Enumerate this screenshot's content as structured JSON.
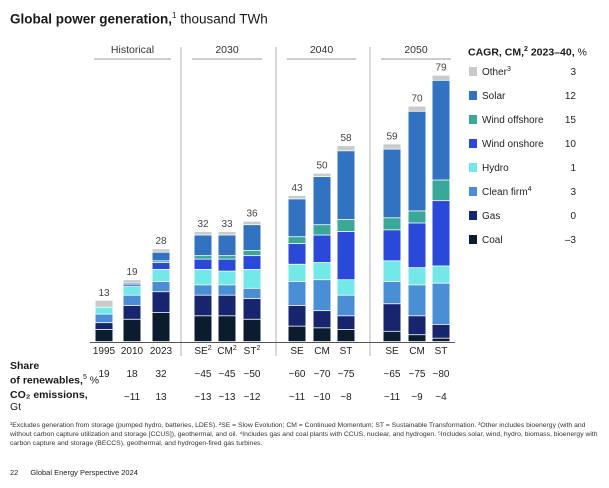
{
  "title": {
    "main": "Global power generation,",
    "sup": "1",
    "unit": " thousand TWh"
  },
  "chart_data": {
    "type": "bar",
    "stacked": true,
    "title": "Global power generation, thousand TWh",
    "groups": [
      {
        "label": "Historical",
        "categories": [
          "1995",
          "2010",
          "2023"
        ]
      },
      {
        "label": "2030",
        "categories": [
          "SE²",
          "CM²",
          "ST²"
        ]
      },
      {
        "label": "2040",
        "categories": [
          "SE",
          "CM",
          "ST"
        ]
      },
      {
        "label": "2050",
        "categories": [
          "SE",
          "CM",
          "ST"
        ]
      }
    ],
    "categories": [
      "1995",
      "2010",
      "2023",
      "SE²",
      "CM²",
      "ST²",
      "SE",
      "CM",
      "ST",
      "SE",
      "CM",
      "ST"
    ],
    "totals": [
      "13",
      "19",
      "28",
      "32",
      "33",
      "36",
      "43",
      "50",
      "58",
      "59",
      "70",
      "79"
    ],
    "series": [
      {
        "name": "Coal",
        "color": "#0b1c2e",
        "values": [
          3.5,
          6.5,
          8.5,
          7.5,
          7.5,
          6.5,
          4.5,
          4,
          3.5,
          3,
          2,
          1
        ]
      },
      {
        "name": "Gas",
        "color": "#17246e",
        "values": [
          2,
          4,
          6,
          6,
          6,
          6,
          6,
          5,
          4,
          8,
          5.5,
          4
        ]
      },
      {
        "name": "Clean firm",
        "color": "#4a8fd6",
        "values": [
          2.5,
          3,
          3,
          3,
          3,
          3,
          7,
          9,
          6,
          6.5,
          9,
          12
        ]
      },
      {
        "name": "Hydro",
        "color": "#72e8e8",
        "values": [
          2,
          2.5,
          3.5,
          4.5,
          4,
          5.5,
          5,
          5,
          4.5,
          6,
          5,
          5
        ]
      },
      {
        "name": "Wind onshore",
        "color": "#2b49d9",
        "values": [
          0,
          0.5,
          2,
          3,
          3.5,
          4,
          6,
          8,
          14,
          9,
          13,
          19
        ]
      },
      {
        "name": "Wind offshore",
        "color": "#3aa898",
        "values": [
          0,
          0,
          0.5,
          1,
          1,
          1.5,
          2,
          3,
          3.5,
          3.5,
          3.5,
          6
        ]
      },
      {
        "name": "Solar",
        "color": "#3173c0",
        "values": [
          0,
          0.5,
          2.5,
          6,
          6,
          7.5,
          11,
          14,
          20,
          20,
          29,
          29
        ]
      },
      {
        "name": "Other",
        "color": "#cacaca",
        "values": [
          2,
          1,
          1,
          1,
          1,
          1,
          1,
          1,
          1.5,
          1.5,
          1.5,
          1.5
        ]
      }
    ],
    "ylim": [
      0,
      82
    ],
    "grid": false,
    "share_of_renewables": [
      "19",
      "18",
      "32",
      "~45",
      "~45",
      "~50",
      "~60",
      "~70",
      "~75",
      "~65",
      "~75",
      "~80"
    ],
    "co2_emissions": [
      "",
      "~11",
      "13",
      "~13",
      "~13",
      "~12",
      "~11",
      "~10",
      "~8",
      "~11",
      "~9",
      "~4"
    ],
    "legend": {
      "title": "CAGR, CM,",
      "title_sup": "2",
      "title_years": " 2023–40,",
      "title_unit": " %",
      "placement": "right",
      "items": [
        {
          "name": "Other",
          "sup": "3",
          "cagr": "3",
          "color": "#cacaca"
        },
        {
          "name": "Solar",
          "sup": "",
          "cagr": "12",
          "color": "#3173c0"
        },
        {
          "name": "Wind offshore",
          "sup": "",
          "cagr": "15",
          "color": "#3aa898"
        },
        {
          "name": "Wind onshore",
          "sup": "",
          "cagr": "10",
          "color": "#2b49d9"
        },
        {
          "name": "Hydro",
          "sup": "",
          "cagr": "1",
          "color": "#72e8e8"
        },
        {
          "name": "Clean firm",
          "sup": "4",
          "cagr": "3",
          "color": "#4a8fd6"
        },
        {
          "name": "Gas",
          "sup": "",
          "cagr": "0",
          "color": "#17246e"
        },
        {
          "name": "Coal",
          "sup": "",
          "cagr": "–3",
          "color": "#0b1c2e"
        }
      ]
    }
  },
  "rows": {
    "renewables_label": "Share of renewables,",
    "renewables_sup": "5",
    "renewables_unit": " %",
    "co2_label": "CO₂ emissions,",
    "co2_unit": "Gt"
  },
  "footnote": "¹Excludes generation from storage (pumped hydro, batteries, LDES). ²SE = Slow Evolution; CM = Continued Momentum; ST = Sustainable Transformation. ³Other includes bioenergy (with and without carbon capture utilization and storage [CCUS]), geothermal, and oil. ⁴Includes gas and coal plants with CCUS, nuclear, and hydrogen. ⁵Includes solar, wind, hydro, biomass, bioenergy with carbon capture and storage (BECCS), geothermal, and hydrogen-fired gas turbines.",
  "footer": {
    "page": "22",
    "publication": "Global Energy Perspective 2024"
  }
}
